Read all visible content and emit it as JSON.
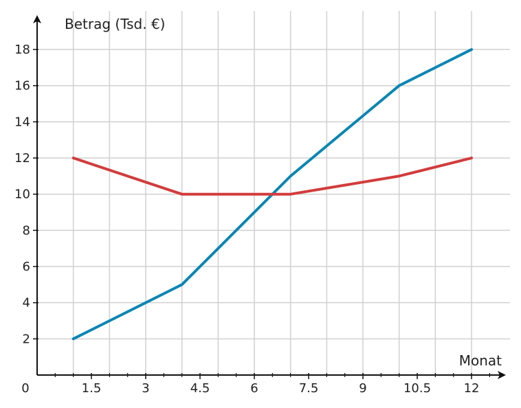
{
  "chart_data": {
    "type": "line",
    "ylabel": "Betrag (Tsd. €)",
    "xlabel": "Monat",
    "origin_label": "0",
    "xlim": [
      0,
      13
    ],
    "ylim": [
      0,
      19
    ],
    "x_ticks": [
      1.5,
      3,
      4.5,
      6,
      7.5,
      9,
      10.5,
      12
    ],
    "x_tick_labels": [
      "1.5",
      "3",
      "4.5",
      "6",
      "7.5",
      "9",
      "10.5",
      "12"
    ],
    "y_ticks": [
      2,
      4,
      6,
      8,
      10,
      12,
      14,
      16,
      18
    ],
    "y_tick_labels": [
      "2",
      "4",
      "6",
      "8",
      "10",
      "12",
      "14",
      "16",
      "18"
    ],
    "grid": true,
    "series": [
      {
        "color": "#0a86b4",
        "x": [
          1,
          4,
          7,
          10,
          12
        ],
        "y": [
          2,
          5,
          11,
          16,
          18
        ]
      },
      {
        "color": "#d23c3c",
        "x": [
          1,
          4,
          7,
          10,
          12
        ],
        "y": [
          12,
          10,
          10,
          11,
          12
        ]
      }
    ]
  }
}
